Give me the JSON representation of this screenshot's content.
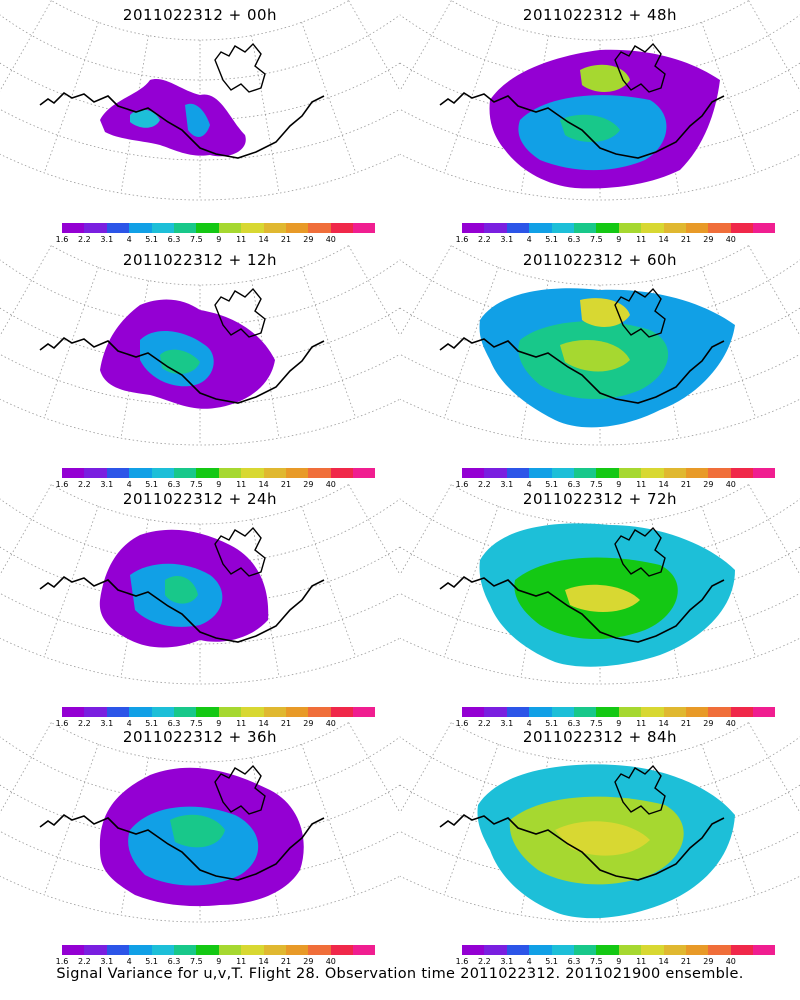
{
  "panels": [
    {
      "title": "2011022312 + 00h",
      "level": 0
    },
    {
      "title": "2011022312 + 48h",
      "level": 4
    },
    {
      "title": "2011022312 + 12h",
      "level": 1
    },
    {
      "title": "2011022312 + 60h",
      "level": 5
    },
    {
      "title": "2011022312 + 24h",
      "level": 2
    },
    {
      "title": "2011022312 + 72h",
      "level": 6
    },
    {
      "title": "2011022312 + 36h",
      "level": 3
    },
    {
      "title": "2011022312 + 84h",
      "level": 7
    }
  ],
  "colorbar": {
    "labels": [
      "1.6",
      "2.2",
      "3.1",
      "4",
      "5.1",
      "6.3",
      "7.5",
      "9",
      "11",
      "14",
      "21",
      "29",
      "40"
    ],
    "colors": [
      "#9400d3",
      "#7a1fe0",
      "#2c55e8",
      "#11a0e6",
      "#1dbfd8",
      "#18c88a",
      "#14c814",
      "#a6d830",
      "#d8d832",
      "#e0b830",
      "#e89a28",
      "#f06e3a",
      "#f0284a",
      "#f01e90"
    ]
  },
  "footer": "Signal Variance for u,v,T. Flight 28. Observation time 2011022312. 2011021900 ensemble."
}
